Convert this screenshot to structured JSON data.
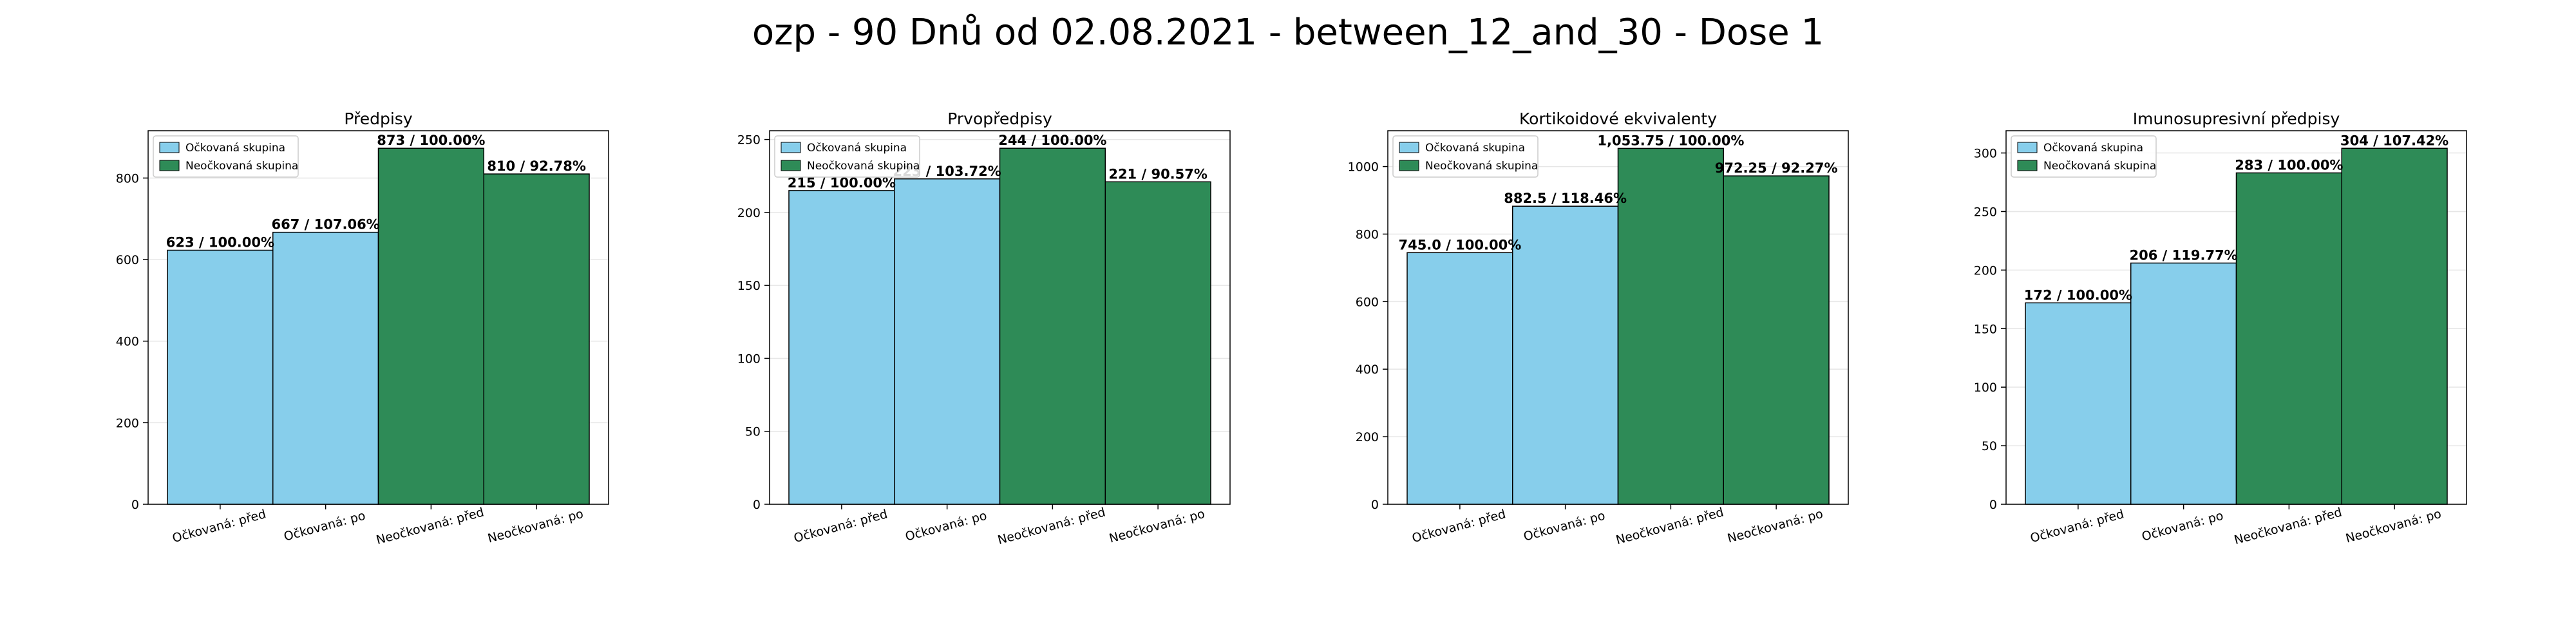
{
  "figure": {
    "title": "ozp - 90 Dnů od 02.08.2021 - between_12_and_30 - Dose 1"
  },
  "colors": {
    "vaccinated": "#87ceeb",
    "unvaccinated": "#2e8b57",
    "frame": "#000000",
    "grid": "#e6e6e6"
  },
  "chart_data": [
    {
      "type": "bar",
      "title": "Předpisy",
      "categories": [
        "Očkovaná: před",
        "Očkovaná: po",
        "Neočkovaná: před",
        "Neočkovaná: po"
      ],
      "values": [
        623,
        667,
        873,
        810
      ],
      "bar_labels": [
        "623 / 100.00%",
        "667 / 107.06%",
        "873 / 100.00%",
        "810 / 92.78%"
      ],
      "group": [
        "vaccinated",
        "vaccinated",
        "unvaccinated",
        "unvaccinated"
      ],
      "ylim": [
        0,
        916
      ],
      "yticks": [
        0,
        200,
        400,
        600,
        800
      ],
      "legend": [
        "Očkovaná skupina",
        "Neočkovaná skupina"
      ],
      "legend_loc": "upper left",
      "grid": true
    },
    {
      "type": "bar",
      "title": "Prvopředpisy",
      "categories": [
        "Očkovaná: před",
        "Očkovaná: po",
        "Neočkovaná: před",
        "Neočkovaná: po"
      ],
      "values": [
        215,
        223,
        244,
        221
      ],
      "bar_labels": [
        "215 / 100.00%",
        "223 / 103.72%",
        "244 / 100.00%",
        "221 / 90.57%"
      ],
      "group": [
        "vaccinated",
        "vaccinated",
        "unvaccinated",
        "unvaccinated"
      ],
      "ylim": [
        0,
        256
      ],
      "yticks": [
        0,
        50,
        100,
        150,
        200,
        250
      ],
      "legend": [
        "Očkovaná skupina",
        "Neočkovaná skupina"
      ],
      "legend_loc": "upper left",
      "grid": true
    },
    {
      "type": "bar",
      "title": "Kortikoidové ekvivalenty",
      "categories": [
        "Očkovaná: před",
        "Očkovaná: po",
        "Neočkovaná: před",
        "Neočkovaná: po"
      ],
      "values": [
        745.0,
        882.5,
        1053.75,
        972.25
      ],
      "bar_labels": [
        "745.0 / 100.00%",
        "882.5 / 118.46%",
        "1,053.75 / 100.00%",
        "972.25 / 92.27%"
      ],
      "group": [
        "vaccinated",
        "vaccinated",
        "unvaccinated",
        "unvaccinated"
      ],
      "ylim": [
        0,
        1106
      ],
      "yticks": [
        0,
        200,
        400,
        600,
        800,
        1000
      ],
      "legend": [
        "Očkovaná skupina",
        "Neočkovaná skupina"
      ],
      "legend_loc": "upper left",
      "grid": true
    },
    {
      "type": "bar",
      "title": "Imunosupresivní předpisy",
      "categories": [
        "Očkovaná: před",
        "Očkovaná: po",
        "Neočkovaná: před",
        "Neočkovaná: po"
      ],
      "values": [
        172,
        206,
        283,
        304
      ],
      "bar_labels": [
        "172 / 100.00%",
        "206 / 119.77%",
        "283 / 100.00%",
        "304 / 107.42%"
      ],
      "group": [
        "vaccinated",
        "vaccinated",
        "unvaccinated",
        "unvaccinated"
      ],
      "ylim": [
        0,
        319
      ],
      "yticks": [
        0,
        50,
        100,
        150,
        200,
        250,
        300
      ],
      "legend": [
        "Očkovaná skupina",
        "Neočkovaná skupina"
      ],
      "legend_loc": "upper left",
      "grid": true
    }
  ]
}
